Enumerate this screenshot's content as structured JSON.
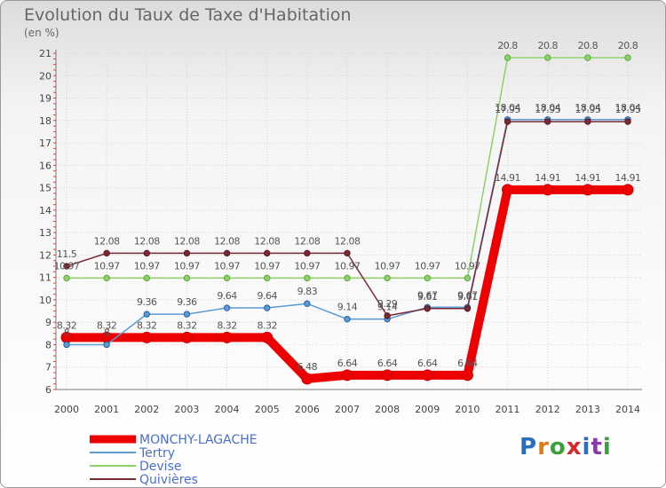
{
  "title": "Evolution du Taux de Taxe d'Habitation",
  "unit": "(en %)",
  "logo": {
    "letters": [
      "P",
      "r",
      "o",
      "x",
      "i",
      "t",
      "i"
    ],
    "colors": [
      "#2a6fbd",
      "#e07b14",
      "#3aa13a",
      "#d42a2a",
      "#2a6fbd",
      "#8a3aa8",
      "#3aa13a"
    ]
  },
  "chart_data": {
    "type": "line",
    "x": [
      2000,
      2001,
      2002,
      2003,
      2004,
      2005,
      2006,
      2007,
      2008,
      2009,
      2010,
      2011,
      2012,
      2013,
      2014
    ],
    "ylim": [
      6,
      21
    ],
    "yticks": [
      6,
      7,
      8,
      9,
      10,
      11,
      12,
      13,
      14,
      15,
      16,
      17,
      18,
      19,
      20,
      21
    ],
    "series": [
      {
        "name": "MONCHY-LAGACHE",
        "color": "#ee0000",
        "width": 10,
        "values": [
          8.32,
          8.32,
          8.32,
          8.32,
          8.32,
          8.32,
          6.48,
          6.64,
          6.64,
          6.64,
          6.64,
          14.91,
          14.91,
          14.91,
          14.91
        ],
        "labels": [
          "8.32",
          "8.32",
          "8.32",
          "8.32",
          "8.32",
          "8.32",
          "6.48",
          "6.64",
          "6.64",
          "6.64",
          "6.64",
          "14.91",
          "14.91",
          "14.91",
          "14.91"
        ]
      },
      {
        "name": "Tertry",
        "color": "#5b9bd5",
        "width": 1.5,
        "values": [
          8,
          8,
          9.36,
          9.36,
          9.64,
          9.64,
          9.83,
          9.14,
          9.14,
          9.67,
          9.67,
          18.04,
          18.04,
          18.04,
          18.04
        ],
        "labels": [
          "8",
          "8",
          "9.36",
          "9.36",
          "9.64",
          "9.64",
          "9.83",
          "9.14",
          "9.14",
          "9.67",
          "9.67",
          "18.04",
          "18.04",
          "18.04",
          "18.04"
        ]
      },
      {
        "name": "Devise",
        "color": "#8fd16a",
        "width": 1.5,
        "values": [
          10.97,
          10.97,
          10.97,
          10.97,
          10.97,
          10.97,
          10.97,
          10.97,
          10.97,
          10.97,
          10.97,
          20.8,
          20.8,
          20.8,
          20.8
        ],
        "labels": [
          "10.97",
          "10.97",
          "10.97",
          "10.97",
          "10.97",
          "10.97",
          "10.97",
          "10.97",
          "10.97",
          "10.97",
          "10.97",
          "20.8",
          "20.8",
          "20.8",
          "20.8"
        ]
      },
      {
        "name": "Quivières",
        "color": "#7a2a35",
        "width": 1.5,
        "values": [
          11.5,
          12.08,
          12.08,
          12.08,
          12.08,
          12.08,
          12.08,
          12.08,
          9.29,
          9.61,
          9.61,
          17.95,
          17.95,
          17.95,
          17.95
        ],
        "labels": [
          "11.5",
          "12.08",
          "12.08",
          "12.08",
          "12.08",
          "12.08",
          "12.08",
          "12.08",
          "9.29",
          "9.61",
          "9.61",
          "17.95",
          "17.95",
          "17.95",
          "17.95"
        ]
      }
    ]
  }
}
